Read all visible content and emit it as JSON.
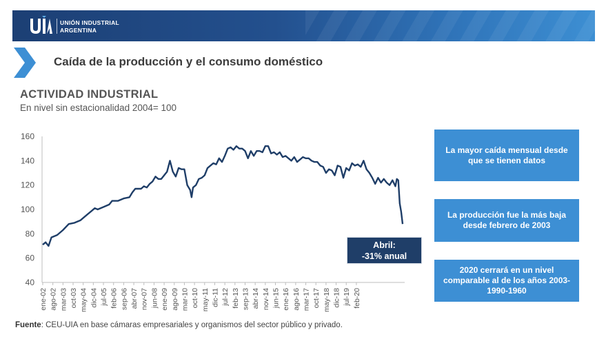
{
  "header": {
    "brand_line1": "UNIÓN INDUSTRIAL",
    "brand_line2": "ARGENTINA",
    "logo_icon": "uia-logo",
    "color_start": "#1c3f74",
    "color_end": "#3d8fd3"
  },
  "slide": {
    "title": "Caída de la producción y el consumo doméstico",
    "chevron_icon": "chevron-right-icon",
    "chevron_color": "#3d8fd4"
  },
  "callouts": [
    {
      "text": "La mayor caída mensual desde que se tienen datos"
    },
    {
      "text": "La producción fue la más baja desde febrero de 2003"
    },
    {
      "text": "2020 cerrará en un nivel comparable al de los años 2003-1990-1960"
    }
  ],
  "annotation": {
    "line1": "Abril:",
    "line2": "-31% anual"
  },
  "source": {
    "label": "Fuente",
    "text": ": CEU-UIA en base cámaras empresariales y organismos del sector público y privado."
  },
  "chart_data": {
    "type": "line",
    "title": "ACTIVIDAD INDUSTRIAL",
    "subtitle": "En nivel sin estacionalidad 2004= 100",
    "xlabel": "",
    "ylabel": "",
    "ylim": [
      40,
      160
    ],
    "yticks": [
      40,
      60,
      80,
      100,
      120,
      140,
      160
    ],
    "grid": false,
    "line_color": "#1f3e68",
    "x_start": "2002-01",
    "x_end": "2020-04",
    "xtick_labels": [
      "ene-02",
      "ago-02",
      "mar-03",
      "oct-03",
      "may-04",
      "dic-04",
      "jul-05",
      "feb-06",
      "sep-06",
      "abr-07",
      "nov-07",
      "jun-08",
      "ene-09",
      "ago-09",
      "mar-10",
      "oct-10",
      "may-11",
      "dic-11",
      "jul-12",
      "feb-13",
      "sep-13",
      "abr-14",
      "nov-14",
      "jun-15",
      "ene-16",
      "ago-16",
      "mar-17",
      "oct-17",
      "may-18",
      "dic-18",
      "jul-19",
      "feb-20"
    ],
    "series": [
      {
        "values": [
          [
            0,
            71
          ],
          [
            2,
            73
          ],
          [
            4,
            70
          ],
          [
            6,
            77
          ],
          [
            10,
            79
          ],
          [
            14,
            83
          ],
          [
            18,
            88
          ],
          [
            22,
            89
          ],
          [
            26,
            91
          ],
          [
            30,
            95
          ],
          [
            34,
            99
          ],
          [
            36,
            101
          ],
          [
            38,
            100
          ],
          [
            42,
            102
          ],
          [
            46,
            104
          ],
          [
            48,
            107
          ],
          [
            52,
            107
          ],
          [
            56,
            109
          ],
          [
            60,
            110
          ],
          [
            62,
            114
          ],
          [
            64,
            117
          ],
          [
            68,
            117
          ],
          [
            70,
            119
          ],
          [
            72,
            118
          ],
          [
            74,
            121
          ],
          [
            76,
            123
          ],
          [
            78,
            127
          ],
          [
            80,
            125
          ],
          [
            82,
            125
          ],
          [
            84,
            128
          ],
          [
            86,
            131
          ],
          [
            88,
            140
          ],
          [
            90,
            131
          ],
          [
            92,
            127
          ],
          [
            94,
            134
          ],
          [
            96,
            133
          ],
          [
            98,
            133
          ],
          [
            100,
            120
          ],
          [
            102,
            116
          ],
          [
            103,
            110
          ],
          [
            104,
            118
          ],
          [
            106,
            120
          ],
          [
            108,
            125
          ],
          [
            110,
            126
          ],
          [
            112,
            128
          ],
          [
            114,
            134
          ],
          [
            116,
            136
          ],
          [
            118,
            138
          ],
          [
            120,
            137
          ],
          [
            122,
            142
          ],
          [
            124,
            139
          ],
          [
            126,
            144
          ],
          [
            128,
            150
          ],
          [
            130,
            151
          ],
          [
            132,
            149
          ],
          [
            134,
            152
          ],
          [
            136,
            150
          ],
          [
            138,
            150
          ],
          [
            140,
            148
          ],
          [
            142,
            142
          ],
          [
            144,
            148
          ],
          [
            146,
            144
          ],
          [
            148,
            148
          ],
          [
            150,
            148
          ],
          [
            152,
            147
          ],
          [
            154,
            152
          ],
          [
            156,
            152
          ],
          [
            158,
            146
          ],
          [
            160,
            147
          ],
          [
            162,
            145
          ],
          [
            164,
            147
          ],
          [
            166,
            143
          ],
          [
            168,
            144
          ],
          [
            170,
            142
          ],
          [
            172,
            140
          ],
          [
            174,
            143
          ],
          [
            176,
            139
          ],
          [
            178,
            141
          ],
          [
            180,
            143
          ],
          [
            182,
            142
          ],
          [
            184,
            142
          ],
          [
            186,
            140
          ],
          [
            188,
            139
          ],
          [
            190,
            139
          ],
          [
            192,
            136
          ],
          [
            194,
            135
          ],
          [
            196,
            130
          ],
          [
            198,
            133
          ],
          [
            200,
            132
          ],
          [
            202,
            128
          ],
          [
            204,
            136
          ],
          [
            206,
            135
          ],
          [
            208,
            126
          ],
          [
            210,
            134
          ],
          [
            212,
            132
          ],
          [
            214,
            138
          ],
          [
            216,
            136
          ],
          [
            218,
            137
          ],
          [
            220,
            135
          ],
          [
            222,
            140
          ],
          [
            224,
            133
          ],
          [
            226,
            130
          ],
          [
            228,
            126
          ],
          [
            230,
            121
          ],
          [
            232,
            126
          ],
          [
            234,
            122
          ],
          [
            236,
            125
          ],
          [
            238,
            122
          ],
          [
            240,
            120
          ],
          [
            242,
            124
          ],
          [
            244,
            119
          ],
          [
            245,
            125
          ],
          [
            246,
            124
          ],
          [
            247,
            105
          ],
          [
            248,
            98
          ],
          [
            249,
            88
          ]
        ]
      }
    ]
  }
}
